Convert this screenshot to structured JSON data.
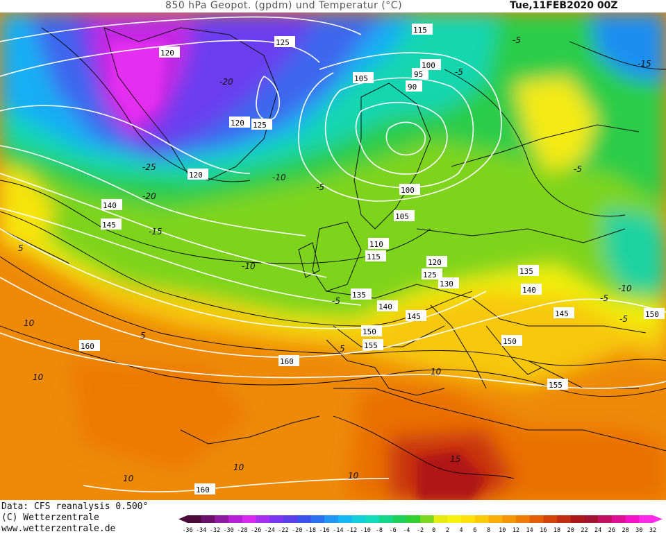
{
  "header": {
    "title": "850 hPa Geopot. (gpdm) und Temperatur (°C)",
    "datetime": "Tue,11FEB2020 00Z"
  },
  "footer": {
    "data_source": "Data: CFS reanalysis 0.500°",
    "copyright": "(C) Wetterzentrale",
    "website": "www.wetterzentrale.de"
  },
  "colorbar": {
    "ticks": [
      "-36",
      "-34",
      "-32",
      "-30",
      "-28",
      "-26",
      "-24",
      "-22",
      "-20",
      "-18",
      "-16",
      "-14",
      "-12",
      "-10",
      "-8",
      "-6",
      "-4",
      "-2",
      "0",
      "2",
      "4",
      "6",
      "8",
      "10",
      "12",
      "14",
      "16",
      "18",
      "20",
      "22",
      "24",
      "26",
      "28",
      "30",
      "32"
    ],
    "colors": [
      "#4a0a3a",
      "#6a1068",
      "#8e1aa2",
      "#b81ed6",
      "#d628ee",
      "#a62ef0",
      "#7a36f0",
      "#5a3ee8",
      "#3c50ec",
      "#2a72f0",
      "#2296f4",
      "#16b6f4",
      "#14cedc",
      "#12dcba",
      "#14d68a",
      "#1ed05a",
      "#30d030",
      "#7ad81e",
      "#e6ec10",
      "#f7f30c",
      "#fde00c",
      "#fcc80a",
      "#f9ae08",
      "#f49606",
      "#ee7c06",
      "#e46006",
      "#d44408",
      "#c22c10",
      "#ac1818",
      "#a01432",
      "#c21060",
      "#e01096",
      "#f414c8",
      "#fa2ae8"
    ]
  },
  "contour_labels": {
    "geopotential": [
      {
        "text": "120"
      },
      {
        "text": "125"
      },
      {
        "text": "115"
      },
      {
        "text": "105"
      },
      {
        "text": "100"
      },
      {
        "text": "95"
      },
      {
        "text": "90"
      },
      {
        "text": "120"
      },
      {
        "text": "125"
      },
      {
        "text": "120"
      },
      {
        "text": "140"
      },
      {
        "text": "145"
      },
      {
        "text": "100"
      },
      {
        "text": "105"
      },
      {
        "text": "110"
      },
      {
        "text": "115"
      },
      {
        "text": "120"
      },
      {
        "text": "125"
      },
      {
        "text": "130"
      },
      {
        "text": "135"
      },
      {
        "text": "140"
      },
      {
        "text": "135"
      },
      {
        "text": "140"
      },
      {
        "text": "145"
      },
      {
        "text": "150"
      },
      {
        "text": "155"
      },
      {
        "text": "145"
      },
      {
        "text": "150"
      },
      {
        "text": "150"
      },
      {
        "text": "160"
      },
      {
        "text": "160"
      },
      {
        "text": "155"
      },
      {
        "text": "160"
      }
    ],
    "temperature": [
      {
        "text": "-20"
      },
      {
        "text": "-25"
      },
      {
        "text": "-20"
      },
      {
        "text": "-15"
      },
      {
        "text": "-10"
      },
      {
        "text": "-10"
      },
      {
        "text": "-5"
      },
      {
        "text": "-5"
      },
      {
        "text": "-5"
      },
      {
        "text": "-5"
      },
      {
        "text": "-5"
      },
      {
        "text": "-5"
      },
      {
        "text": "-10"
      },
      {
        "text": "-15"
      },
      {
        "text": "-5"
      },
      {
        "text": "5"
      },
      {
        "text": "10"
      },
      {
        "text": "5"
      },
      {
        "text": "5"
      },
      {
        "text": "10"
      },
      {
        "text": "10"
      },
      {
        "text": "10"
      },
      {
        "text": "10"
      },
      {
        "text": "15"
      },
      {
        "text": "10"
      }
    ]
  }
}
